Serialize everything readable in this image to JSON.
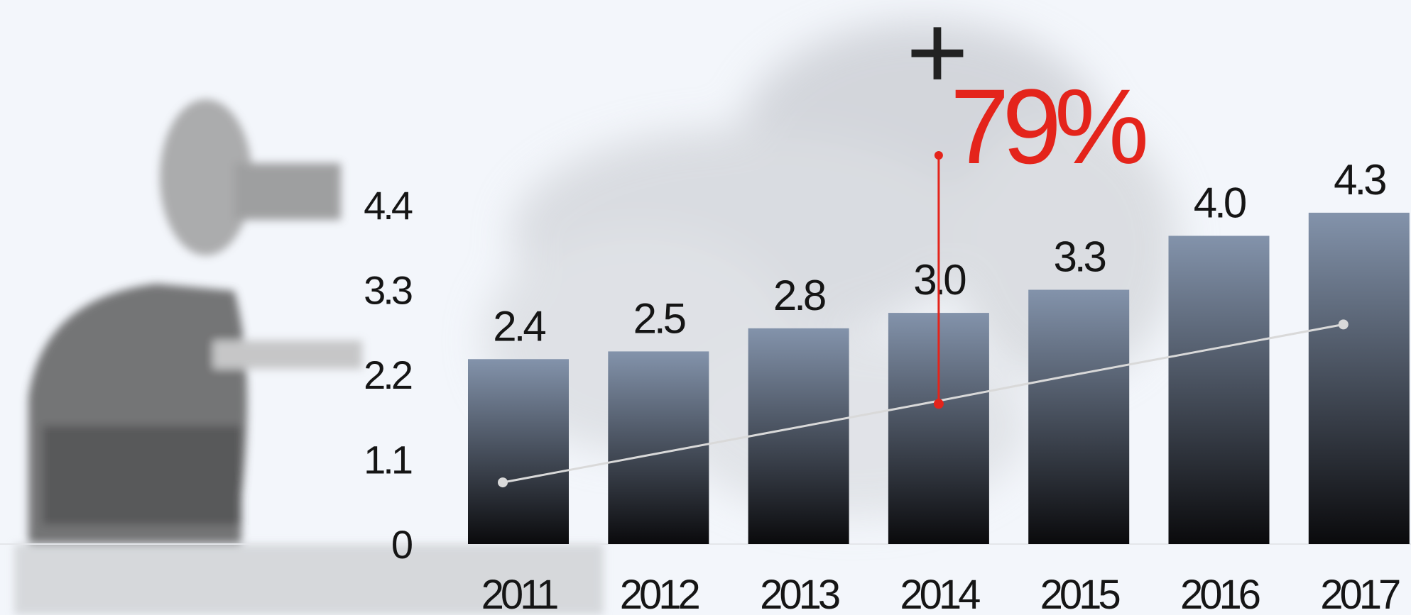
{
  "chart_data": {
    "type": "bar",
    "categories": [
      "2011",
      "2012",
      "2013",
      "2014",
      "2015",
      "2016",
      "2017"
    ],
    "values": [
      2.4,
      2.5,
      2.8,
      3.0,
      3.3,
      4.0,
      4.3
    ],
    "value_labels": [
      "2.4",
      "2.5",
      "2.8",
      "3.0",
      "3.3",
      "4.0",
      "4.3"
    ],
    "color_top": "#8393ab",
    "color_bottom": "#0a0a0c",
    "ylim": [
      0,
      4.4
    ],
    "yticks": [
      0,
      1.1,
      2.2,
      3.3,
      4.4
    ],
    "trend": {
      "color": "#d9d9d9",
      "values": [
        0.8,
        1.14,
        1.48,
        1.82,
        2.17,
        2.51,
        2.85
      ]
    },
    "annotation_sign": "+",
    "annotation": "79%",
    "annotation_color": "#e4241b"
  }
}
